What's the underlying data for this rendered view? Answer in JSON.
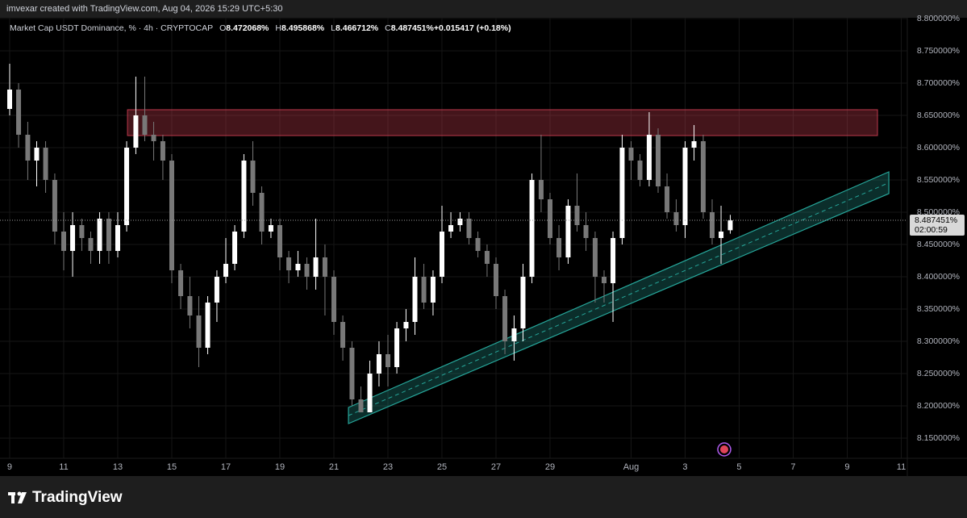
{
  "header": {
    "text": "imvexar created with TradingView.com, Aug 04, 2026 15:29 UTC+5:30"
  },
  "footer": {
    "brand": "TradingView"
  },
  "chart_data": {
    "type": "candlestick",
    "title": "Market Cap USDT Dominance, % · 4h · CRYPTOCAP",
    "legend": [
      {
        "label": "O",
        "value": "8.472068%"
      },
      {
        "label": "H",
        "value": "8.495868%"
      },
      {
        "label": "L",
        "value": "8.466712%"
      },
      {
        "label": "C",
        "value": "8.487451%"
      },
      {
        "label": "",
        "value": "+0.015417 (+0.18%)"
      }
    ],
    "up_color": "#ffffff",
    "down_color": "#787878",
    "xlim": [
      -0.358,
      33.224
    ],
    "xticks": [
      {
        "value": 0,
        "label": "9"
      },
      {
        "value": 2,
        "label": "11"
      },
      {
        "value": 4,
        "label": "13"
      },
      {
        "value": 6,
        "label": "15"
      },
      {
        "value": 8,
        "label": "17"
      },
      {
        "value": 10,
        "label": "19"
      },
      {
        "value": 12,
        "label": "21"
      },
      {
        "value": 14,
        "label": "23"
      },
      {
        "value": 16,
        "label": "25"
      },
      {
        "value": 18,
        "label": "27"
      },
      {
        "value": 20,
        "label": "29"
      },
      {
        "value": 23,
        "label": "Aug"
      },
      {
        "value": 25,
        "label": "3"
      },
      {
        "value": 27,
        "label": "5"
      },
      {
        "value": 29,
        "label": "7"
      },
      {
        "value": 31,
        "label": "9"
      },
      {
        "value": 33,
        "label": "11"
      }
    ],
    "ylim": [
      8.11875,
      8.80125
    ],
    "yticks": [
      {
        "value": 8.15,
        "label": "8.150000%"
      },
      {
        "value": 8.2,
        "label": "8.200000%"
      },
      {
        "value": 8.25,
        "label": "8.250000%"
      },
      {
        "value": 8.3,
        "label": "8.300000%"
      },
      {
        "value": 8.35,
        "label": "8.350000%"
      },
      {
        "value": 8.4,
        "label": "8.400000%"
      },
      {
        "value": 8.45,
        "label": "8.450000%"
      },
      {
        "value": 8.5,
        "label": "8.500000%"
      },
      {
        "value": 8.55,
        "label": "8.550000%"
      },
      {
        "value": 8.6,
        "label": "8.600000%"
      },
      {
        "value": 8.65,
        "label": "8.650000%"
      },
      {
        "value": 8.7,
        "label": "8.700000%"
      },
      {
        "value": 8.75,
        "label": "8.750000%"
      },
      {
        "value": 8.8,
        "label": "8.800000%"
      }
    ],
    "grid": true,
    "last_price": {
      "value": 8.487451,
      "label": "8.487451%",
      "countdown": "02:00:59"
    },
    "zone": {
      "color": "#e0445a",
      "x": [
        4.36,
        32.12
      ],
      "y": [
        8.6187,
        8.6588
      ]
    },
    "channel": {
      "color": "#26a69a",
      "x": [
        12.54,
        32.54
      ],
      "upper": [
        8.1975,
        8.5625
      ],
      "lower": [
        8.1725,
        8.5288
      ]
    },
    "candles": [
      [
        0.0,
        8.66,
        8.73,
        8.65,
        8.69
      ],
      [
        0.33,
        8.69,
        8.7,
        8.6,
        8.62
      ],
      [
        0.67,
        8.62,
        8.64,
        8.55,
        8.58
      ],
      [
        1.0,
        8.58,
        8.61,
        8.54,
        8.6
      ],
      [
        1.33,
        8.6,
        8.61,
        8.53,
        8.55
      ],
      [
        1.67,
        8.55,
        8.56,
        8.45,
        8.47
      ],
      [
        2.0,
        8.47,
        8.5,
        8.41,
        8.44
      ],
      [
        2.33,
        8.44,
        8.5,
        8.4,
        8.48
      ],
      [
        2.67,
        8.48,
        8.49,
        8.44,
        8.46
      ],
      [
        3.0,
        8.46,
        8.47,
        8.42,
        8.44
      ],
      [
        3.33,
        8.44,
        8.5,
        8.42,
        8.49
      ],
      [
        3.67,
        8.49,
        8.5,
        8.42,
        8.44
      ],
      [
        4.0,
        8.44,
        8.5,
        8.43,
        8.48
      ],
      [
        4.33,
        8.48,
        8.61,
        8.47,
        8.6
      ],
      [
        4.67,
        8.6,
        8.71,
        8.59,
        8.65
      ],
      [
        5.0,
        8.65,
        8.71,
        8.61,
        8.62
      ],
      [
        5.33,
        8.62,
        8.64,
        8.58,
        8.61
      ],
      [
        5.67,
        8.61,
        8.62,
        8.55,
        8.58
      ],
      [
        6.0,
        8.58,
        8.59,
        8.39,
        8.41
      ],
      [
        6.33,
        8.41,
        8.42,
        8.35,
        8.37
      ],
      [
        6.67,
        8.37,
        8.4,
        8.32,
        8.34
      ],
      [
        7.0,
        8.34,
        8.37,
        8.26,
        8.29
      ],
      [
        7.33,
        8.29,
        8.37,
        8.28,
        8.36
      ],
      [
        7.67,
        8.36,
        8.41,
        8.33,
        8.4
      ],
      [
        8.0,
        8.4,
        8.46,
        8.39,
        8.42
      ],
      [
        8.33,
        8.42,
        8.48,
        8.41,
        8.47
      ],
      [
        8.67,
        8.47,
        8.59,
        8.46,
        8.58
      ],
      [
        9.0,
        8.58,
        8.61,
        8.51,
        8.53
      ],
      [
        9.33,
        8.53,
        8.54,
        8.45,
        8.47
      ],
      [
        9.67,
        8.47,
        8.49,
        8.46,
        8.48
      ],
      [
        10.0,
        8.48,
        8.49,
        8.41,
        8.43
      ],
      [
        10.33,
        8.43,
        8.44,
        8.39,
        8.41
      ],
      [
        10.67,
        8.41,
        8.44,
        8.4,
        8.42
      ],
      [
        11.0,
        8.42,
        8.43,
        8.38,
        8.4
      ],
      [
        11.33,
        8.4,
        8.49,
        8.38,
        8.43
      ],
      [
        11.67,
        8.43,
        8.45,
        8.34,
        8.4
      ],
      [
        12.0,
        8.4,
        8.41,
        8.31,
        8.33
      ],
      [
        12.33,
        8.33,
        8.34,
        8.27,
        8.29
      ],
      [
        12.67,
        8.29,
        8.3,
        8.2,
        8.21
      ],
      [
        13.0,
        8.21,
        8.23,
        8.19,
        8.19
      ],
      [
        13.33,
        8.19,
        8.27,
        8.19,
        8.25
      ],
      [
        13.67,
        8.25,
        8.3,
        8.23,
        8.28
      ],
      [
        14.0,
        8.28,
        8.31,
        8.23,
        8.26
      ],
      [
        14.33,
        8.26,
        8.33,
        8.25,
        8.32
      ],
      [
        14.67,
        8.32,
        8.35,
        8.3,
        8.33
      ],
      [
        15.0,
        8.33,
        8.43,
        8.31,
        8.4
      ],
      [
        15.33,
        8.4,
        8.42,
        8.35,
        8.36
      ],
      [
        15.67,
        8.36,
        8.41,
        8.34,
        8.4
      ],
      [
        16.0,
        8.4,
        8.51,
        8.39,
        8.47
      ],
      [
        16.33,
        8.47,
        8.5,
        8.46,
        8.48
      ],
      [
        16.67,
        8.48,
        8.5,
        8.47,
        8.49
      ],
      [
        17.0,
        8.49,
        8.5,
        8.45,
        8.46
      ],
      [
        17.33,
        8.46,
        8.47,
        8.43,
        8.44
      ],
      [
        17.67,
        8.44,
        8.45,
        8.4,
        8.42
      ],
      [
        18.0,
        8.42,
        8.43,
        8.35,
        8.37
      ],
      [
        18.33,
        8.37,
        8.38,
        8.28,
        8.3
      ],
      [
        18.67,
        8.3,
        8.34,
        8.27,
        8.32
      ],
      [
        19.0,
        8.32,
        8.42,
        8.3,
        8.4
      ],
      [
        19.33,
        8.4,
        8.56,
        8.39,
        8.55
      ],
      [
        19.67,
        8.55,
        8.62,
        8.5,
        8.52
      ],
      [
        20.0,
        8.52,
        8.53,
        8.45,
        8.46
      ],
      [
        20.33,
        8.46,
        8.48,
        8.41,
        8.43
      ],
      [
        20.67,
        8.43,
        8.52,
        8.42,
        8.51
      ],
      [
        21.0,
        8.51,
        8.56,
        8.47,
        8.48
      ],
      [
        21.33,
        8.48,
        8.5,
        8.44,
        8.46
      ],
      [
        21.67,
        8.46,
        8.47,
        8.36,
        8.4
      ],
      [
        22.0,
        8.4,
        8.41,
        8.36,
        8.39
      ],
      [
        22.33,
        8.39,
        8.47,
        8.33,
        8.46
      ],
      [
        22.67,
        8.46,
        8.62,
        8.45,
        8.6
      ],
      [
        23.0,
        8.6,
        8.61,
        8.55,
        8.58
      ],
      [
        23.33,
        8.58,
        8.59,
        8.54,
        8.55
      ],
      [
        23.67,
        8.55,
        8.655,
        8.54,
        8.62
      ],
      [
        24.0,
        8.62,
        8.63,
        8.53,
        8.54
      ],
      [
        24.33,
        8.54,
        8.56,
        8.49,
        8.5
      ],
      [
        24.67,
        8.5,
        8.52,
        8.47,
        8.48
      ],
      [
        25.0,
        8.48,
        8.61,
        8.46,
        8.6
      ],
      [
        25.33,
        8.6,
        8.635,
        8.58,
        8.61
      ],
      [
        25.67,
        8.61,
        8.62,
        8.49,
        8.5
      ],
      [
        26.0,
        8.5,
        8.52,
        8.45,
        8.46
      ],
      [
        26.33,
        8.46,
        8.51,
        8.42,
        8.47
      ],
      [
        26.67,
        8.472068,
        8.495868,
        8.466712,
        8.487451
      ]
    ]
  }
}
